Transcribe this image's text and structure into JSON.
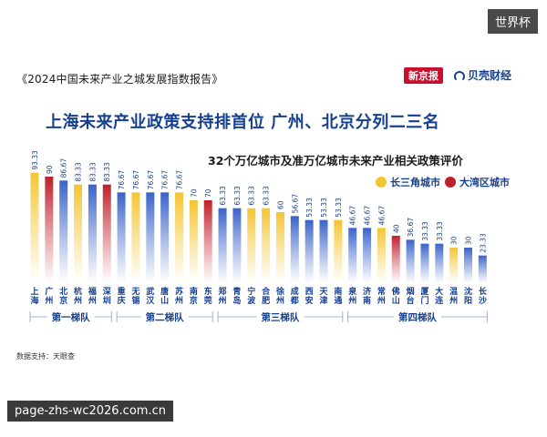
{
  "watermark_tag": "世界杯",
  "url_badge": "page-zhs-wc2026.com.cn",
  "report_title": "《2024中国未来产业之城发展指数报告》",
  "brands": {
    "left": "新京报",
    "right": "贝壳财经"
  },
  "headline": "上海未来产业政策支持排首位 广州、北京分列二三名",
  "source": "数据支持：天眼查",
  "colors": {
    "yrd": "#f4c531",
    "gba": "#c0202b",
    "other": "#3a63c8"
  },
  "chart_data": {
    "type": "bar",
    "title": "32个万亿城市及准万亿城市未来产业相关政策评价",
    "xlabel": "",
    "ylabel": "",
    "ylim": [
      0,
      100
    ],
    "grid": false,
    "legend_placement": "top-right",
    "legend": [
      {
        "label": "长三角城市",
        "group": "yrd"
      },
      {
        "label": "大湾区城市",
        "group": "gba"
      }
    ],
    "categories": [
      "上海",
      "广州",
      "北京",
      "杭州",
      "福州",
      "深圳",
      "重庆",
      "无锡",
      "武汉",
      "唐山",
      "苏州",
      "南京",
      "东莞",
      "郑州",
      "青岛",
      "宁波",
      "合肥",
      "徐州",
      "成都",
      "西安",
      "天津",
      "南通",
      "泉州",
      "济南",
      "常州",
      "佛山",
      "烟台",
      "厦门",
      "大连",
      "温州",
      "沈阳",
      "长沙"
    ],
    "values": [
      93.33,
      90,
      86.67,
      83.33,
      83.33,
      83.33,
      76.67,
      76.67,
      76.67,
      76.67,
      76.67,
      70,
      70,
      63.33,
      63.33,
      63.33,
      63.33,
      60,
      56.67,
      53.33,
      53.33,
      53.33,
      46.67,
      46.67,
      46.67,
      40,
      36.67,
      33.33,
      33.33,
      30,
      30,
      23.33
    ],
    "value_labels": [
      "93.33",
      "90",
      "86.67",
      "83.33",
      "83.33",
      "83.33",
      "76.67",
      "76.67",
      "76.67",
      "76.67",
      "76.67",
      "70",
      "70",
      "63.33",
      "63.33",
      "63.33",
      "63.33",
      "60",
      "56.67",
      "53.33",
      "53.33",
      "53.33",
      "46.67",
      "46.67",
      "46.67",
      "40",
      "36.67",
      "33.33",
      "33.33",
      "30",
      "30",
      "23.33"
    ],
    "groups": [
      "yrd",
      "gba",
      "other",
      "yrd",
      "other",
      "gba",
      "other",
      "yrd",
      "other",
      "other",
      "yrd",
      "yrd",
      "gba",
      "other",
      "other",
      "yrd",
      "yrd",
      "yrd",
      "other",
      "other",
      "other",
      "yrd",
      "other",
      "other",
      "yrd",
      "gba",
      "other",
      "other",
      "other",
      "yrd",
      "other",
      "other"
    ],
    "tiers": [
      {
        "label": "第一梯队",
        "start": 0,
        "end": 5
      },
      {
        "label": "第二梯队",
        "start": 6,
        "end": 12
      },
      {
        "label": "第三梯队",
        "start": 13,
        "end": 21
      },
      {
        "label": "第四梯队",
        "start": 22,
        "end": 31
      }
    ]
  }
}
